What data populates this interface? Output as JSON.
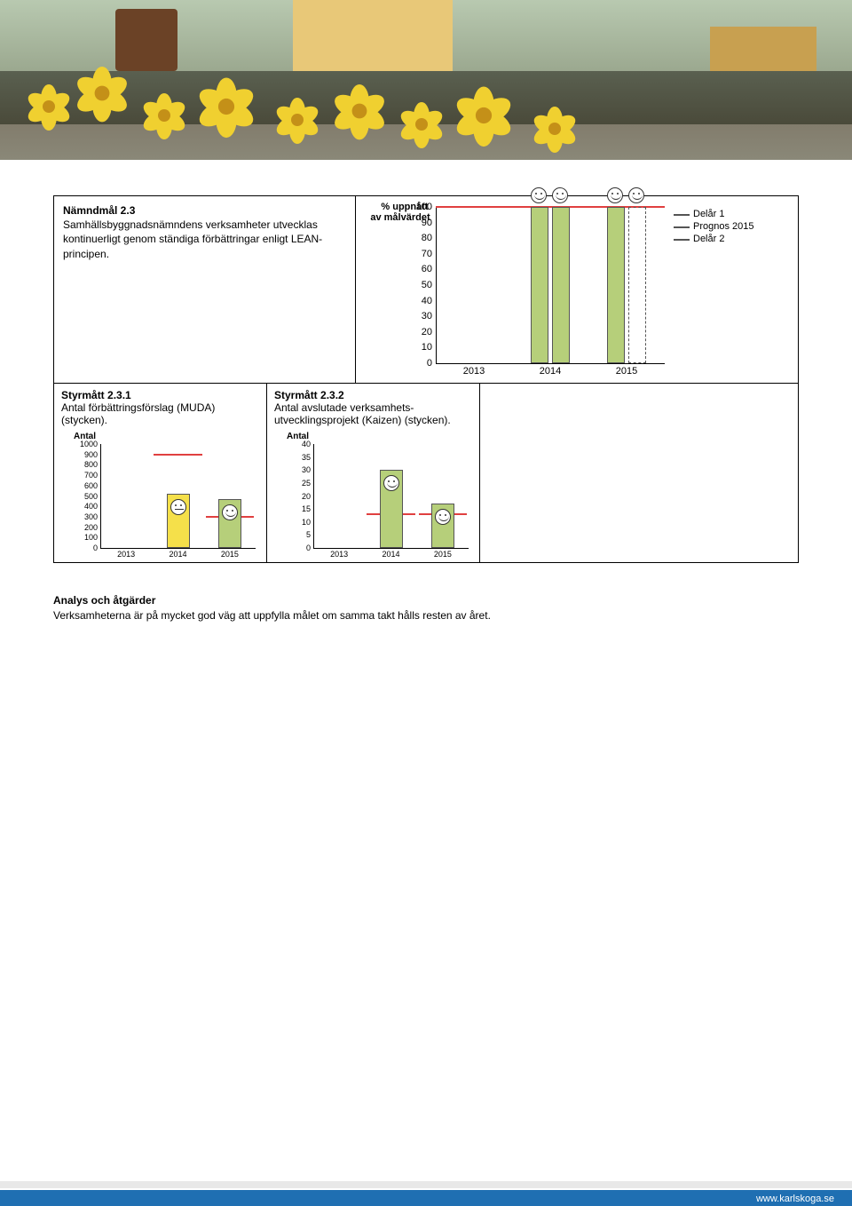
{
  "goal": {
    "title": "Nämndmål 2.3",
    "body": "Samhällsbyggnadsnämndens verksamheter utvecklas kontinuerligt genom ständiga förbättringar enligt LEAN-principen."
  },
  "main_chart": {
    "ytitle1": "% uppnått",
    "ytitle2": "av målvärdet",
    "ylim": [
      0,
      100
    ],
    "ytick_step": 10,
    "yticks": [
      100,
      90,
      80,
      70,
      60,
      50,
      40,
      30,
      20,
      10,
      0
    ],
    "categories": [
      "2013",
      "2014",
      "2015"
    ],
    "bar_fill": "#b6cf7a",
    "target_color": "#e04040",
    "target_value": 100,
    "series": {
      "2013": {
        "delar1": null
      },
      "2014": {
        "delar1": 100,
        "prognos": 100
      },
      "2015": {
        "delar1": 100,
        "prognos": 100,
        "delar2_dashed": true
      }
    },
    "legend": {
      "delar1_label": "Delår 1",
      "prognos_label": "Prognos 2015",
      "delar2_label": "Delår 2",
      "line_color": "#555"
    },
    "smileys": [
      "2014",
      "2015"
    ]
  },
  "measure1": {
    "title": "Styrmått 2.3.1",
    "body": "Antal förbättringsförslag (MUDA) (stycken).",
    "chart": {
      "ylabel": "Antal",
      "ylim": [
        0,
        1000
      ],
      "ytick_step": 100,
      "yticks": [
        1000,
        900,
        800,
        700,
        600,
        500,
        400,
        300,
        200,
        100,
        0
      ],
      "categories": [
        "2013",
        "2014",
        "2015"
      ],
      "target_color": "#e04040",
      "targets": {
        "2014": 900,
        "2015": 300
      },
      "bars": {
        "2014": {
          "value": 520,
          "fill": "#f5e04a",
          "face": "flat"
        },
        "2015": {
          "value": 470,
          "fill": "#b6cf7a",
          "face": "happy"
        }
      }
    }
  },
  "measure2": {
    "title": "Styrmått 2.3.2",
    "body": "Antal avslutade verksamhets-utvecklingsprojekt (Kaizen) (stycken).",
    "chart": {
      "ylabel": "Antal",
      "ylim": [
        0,
        40
      ],
      "ytick_step": 5,
      "yticks": [
        40,
        35,
        30,
        25,
        20,
        15,
        10,
        5,
        0
      ],
      "categories": [
        "2013",
        "2014",
        "2015"
      ],
      "target_color": "#e04040",
      "targets": {
        "2014": 13,
        "2015": 13
      },
      "bars": {
        "2014": {
          "value": 30,
          "fill": "#b6cf7a",
          "face": "happy"
        },
        "2015": {
          "value": 17,
          "fill": "#b6cf7a",
          "face": "happy"
        }
      }
    }
  },
  "analysis": {
    "heading": "Analys och åtgärder",
    "body": "Verksamheterna är på mycket god väg att uppfylla målet om samma takt hålls resten av året."
  },
  "footer": {
    "url": "www.karlskoga.se",
    "bar_color": "#1f6fb2"
  }
}
